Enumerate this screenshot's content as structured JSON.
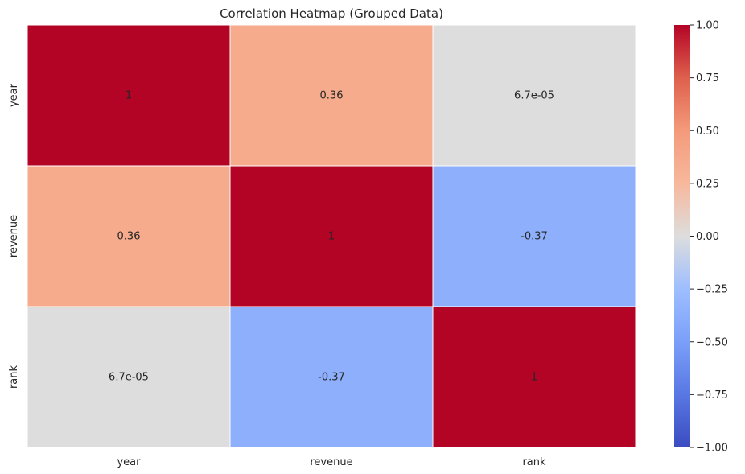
{
  "chart_data": {
    "type": "heatmap",
    "title": "Correlation Heatmap (Grouped Data)",
    "xlabel": "",
    "ylabel": "",
    "x_categories": [
      "year",
      "revenue",
      "rank"
    ],
    "y_categories": [
      "year",
      "revenue",
      "rank"
    ],
    "values": [
      [
        1,
        0.36,
        6.7e-05
      ],
      [
        0.36,
        1,
        -0.37
      ],
      [
        6.7e-05,
        -0.37,
        1
      ]
    ],
    "annotations": [
      [
        "1",
        "0.36",
        "6.7e-05"
      ],
      [
        "0.36",
        "1",
        "-0.37"
      ],
      [
        "6.7e-05",
        "-0.37",
        "1"
      ]
    ],
    "colormap": "coolwarm",
    "colors": {
      "low": "#3b4cc0",
      "mid": "#dddddd",
      "high": "#b40426",
      "cell_border": "#ffffff",
      "text": "#262626"
    },
    "colorbar": {
      "range": [
        -1.0,
        1.0
      ],
      "ticks": [
        1.0,
        0.75,
        0.5,
        0.25,
        0.0,
        -0.25,
        -0.5,
        -0.75,
        -1.0
      ],
      "tick_labels": [
        "1.00",
        "0.75",
        "0.50",
        "0.25",
        "0.00",
        "−0.25",
        "−0.50",
        "−0.75",
        "−1.00"
      ]
    }
  }
}
